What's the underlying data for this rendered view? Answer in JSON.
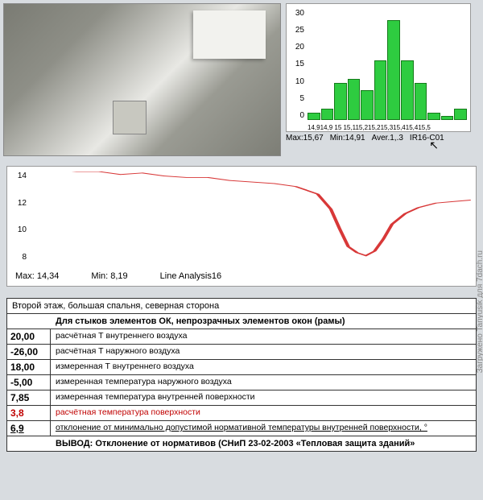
{
  "histogram": {
    "type": "bar",
    "ylim": [
      0,
      30
    ],
    "yticks": [
      0,
      5,
      10,
      15,
      20,
      25,
      30
    ],
    "xlabels_text": "14,914,9 15 15,115,215,215,315,415,415,5",
    "bars": [
      2,
      3,
      10,
      11,
      8,
      16,
      27,
      16,
      10,
      2,
      1,
      3
    ],
    "bar_color": "#2ecc40",
    "bar_border": "#157a1a",
    "background_color": "#ffffff",
    "stats": {
      "max_label": "Max:15,67",
      "min_label": "Min:14,91",
      "aver_label": "Aver.1,.3",
      "id_label": "IR16-C01"
    }
  },
  "line_chart": {
    "type": "line",
    "ylim": [
      8,
      14
    ],
    "yticks": [
      14,
      12,
      10,
      8
    ],
    "line_color": "#d83838",
    "background_color": "#ffffff",
    "points": [
      [
        0,
        14.2
      ],
      [
        5,
        14.1
      ],
      [
        10,
        14.0
      ],
      [
        15,
        14.0
      ],
      [
        20,
        13.8
      ],
      [
        25,
        13.9
      ],
      [
        30,
        13.7
      ],
      [
        35,
        13.6
      ],
      [
        40,
        13.6
      ],
      [
        45,
        13.4
      ],
      [
        50,
        13.3
      ],
      [
        55,
        13.2
      ],
      [
        60,
        13.0
      ],
      [
        62,
        12.8
      ],
      [
        65,
        12.5
      ],
      [
        68,
        11.5
      ],
      [
        70,
        10.2
      ],
      [
        72,
        9.0
      ],
      [
        74,
        8.6
      ],
      [
        76,
        8.4
      ],
      [
        78,
        8.7
      ],
      [
        80,
        9.5
      ],
      [
        82,
        10.5
      ],
      [
        85,
        11.2
      ],
      [
        88,
        11.6
      ],
      [
        92,
        11.9
      ],
      [
        96,
        12.0
      ],
      [
        100,
        12.1
      ]
    ],
    "stats": {
      "max_label": "Max: 14,34",
      "min_label": "Min: 8,19",
      "name_label": "Line Analysis16"
    }
  },
  "table": {
    "header": "Второй этаж, большая спальня, северная сторона",
    "subheader": "Для стыков элементов ОК, непрозрачных элементов окон (рамы)",
    "rows": [
      {
        "val": "20,00",
        "label": "расчётная Т внутреннего воздуха",
        "cls": ""
      },
      {
        "val": "-26,00",
        "label": "расчётная Т наружного воздуха",
        "cls": ""
      },
      {
        "val": "18,00",
        "label": "измеренная Т внутреннего воздуха",
        "cls": ""
      },
      {
        "val": "-5,00",
        "label": "измеренная температура наружного воздуха",
        "cls": ""
      },
      {
        "val": "7,85",
        "label": "измеренная температура внутренней поверхности",
        "cls": ""
      },
      {
        "val": "3,8",
        "label": "расчётная температура поверхности",
        "cls": "red"
      },
      {
        "val": "6,9",
        "label": "отклонение от минимально допустимой нормативной температуры внутренней поверхности, °",
        "cls": "underl"
      }
    ],
    "footer": "ВЫВОД: Отклонение от нормативов (СНиП 23-02-2003 «Тепловая защита зданий»"
  },
  "watermark": "Загружено Tanyusik для 7dach.ru"
}
